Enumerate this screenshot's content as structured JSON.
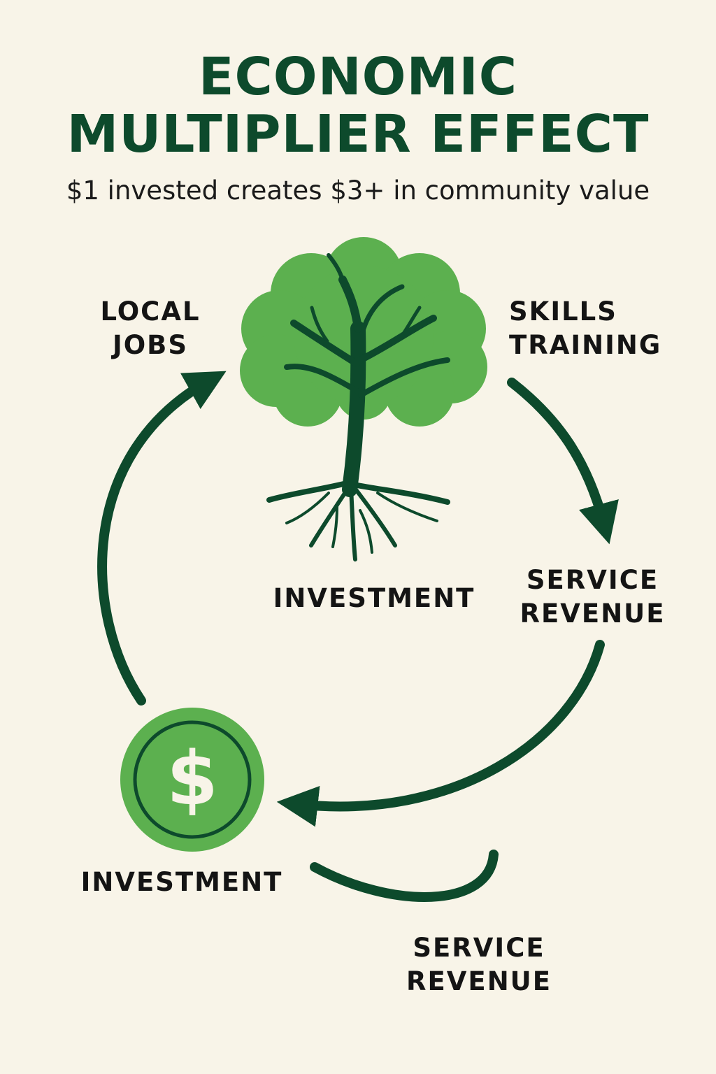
{
  "title": {
    "line1": "ECONOMIC",
    "line2": "MULTIPLIER EFFECT"
  },
  "subtitle": "$1 invested creates $3+ in community value",
  "nodes": {
    "local_jobs": {
      "line1": "LOCAL",
      "line2": "JOBS"
    },
    "skills_training": {
      "line1": "SKILLS",
      "line2": "TRAINING"
    },
    "tree_caption": "INVESTMENT",
    "service_revenue_right": {
      "line1": "SERVICE",
      "line2": "REVENUE"
    },
    "coin_caption": "INVESTMENT",
    "service_revenue_bottom": {
      "line1": "SERVICE",
      "line2": "REVENUE"
    }
  },
  "coin_symbol": "$",
  "colors": {
    "background": "#f8f4e8",
    "dark_green": "#0d4a2c",
    "light_green": "#5cb04f",
    "text": "#141414"
  },
  "icons": [
    "tree-icon",
    "dollar-coin-icon",
    "cycle-arrows"
  ]
}
